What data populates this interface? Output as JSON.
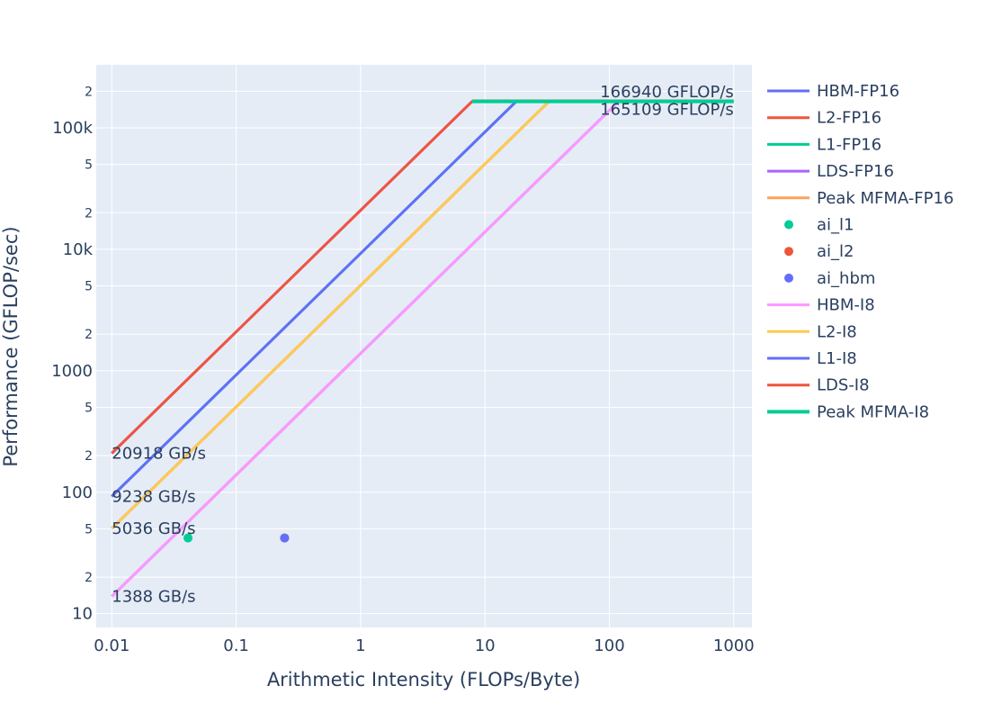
{
  "chart_data": {
    "type": "line",
    "xlabel": "Arithmetic Intensity (FLOPs/Byte)",
    "ylabel": "Performance (GFLOP/sec)",
    "x_scale": "log",
    "y_scale": "log",
    "xlim": [
      0.0075,
      1400
    ],
    "ylim": [
      7.7,
      330000
    ],
    "grid": true,
    "legend_position": "right",
    "x_ticks": [
      {
        "value": 0.01,
        "label": "0.01"
      },
      {
        "value": 0.1,
        "label": "0.1"
      },
      {
        "value": 1,
        "label": "1"
      },
      {
        "value": 10,
        "label": "10"
      },
      {
        "value": 100,
        "label": "100"
      },
      {
        "value": 1000,
        "label": "1000"
      }
    ],
    "y_major_ticks": [
      {
        "value": 10,
        "label": "10"
      },
      {
        "value": 100,
        "label": "100"
      },
      {
        "value": 1000,
        "label": "1000"
      },
      {
        "value": 10000,
        "label": "10k"
      },
      {
        "value": 100000,
        "label": "100k"
      }
    ],
    "y_minor_ticks": [
      {
        "value": 20,
        "label": "2"
      },
      {
        "value": 50,
        "label": "5"
      },
      {
        "value": 200,
        "label": "2"
      },
      {
        "value": 500,
        "label": "5"
      },
      {
        "value": 2000,
        "label": "2"
      },
      {
        "value": 5000,
        "label": "5"
      },
      {
        "value": 20000,
        "label": "2"
      },
      {
        "value": 50000,
        "label": "5"
      },
      {
        "value": 200000,
        "label": "2"
      }
    ],
    "series": [
      {
        "name": "HBM-FP16",
        "kind": "line",
        "color": "#636efa",
        "width": 3,
        "x": [
          0.01,
          120.27
        ],
        "y": [
          13.88,
          166940
        ]
      },
      {
        "name": "L2-FP16",
        "kind": "line",
        "color": "#ef553b",
        "width": 3,
        "x": [
          0.01,
          33.15
        ],
        "y": [
          50.36,
          166940
        ]
      },
      {
        "name": "L1-FP16",
        "kind": "line",
        "color": "#00cc96",
        "width": 3,
        "x": [
          0.01,
          18.07
        ],
        "y": [
          92.38,
          166940
        ]
      },
      {
        "name": "LDS-FP16",
        "kind": "line",
        "color": "#ab63fa",
        "width": 3,
        "x": [
          0.01,
          7.98
        ],
        "y": [
          209.18,
          166940
        ]
      },
      {
        "name": "Peak MFMA-FP16",
        "kind": "line",
        "color": "#ffa15a",
        "width": 3,
        "x": [
          7.98,
          1000
        ],
        "y": [
          166940,
          166940
        ]
      },
      {
        "name": "ai_l1",
        "kind": "marker",
        "color": "#00cc96",
        "x": [
          0.041
        ],
        "y": [
          42
        ]
      },
      {
        "name": "ai_l2",
        "kind": "marker",
        "color": "#ef553b",
        "x": [
          0.245
        ],
        "y": [
          42
        ]
      },
      {
        "name": "ai_hbm",
        "kind": "marker",
        "color": "#636efa",
        "x": [
          0.245
        ],
        "y": [
          42
        ]
      },
      {
        "name": "HBM-I8",
        "kind": "line",
        "color": "#ff97ff",
        "width": 3,
        "x": [
          0.01,
          119.0
        ],
        "y": [
          13.88,
          165109
        ]
      },
      {
        "name": "L2-I8",
        "kind": "line",
        "color": "#fecb52",
        "width": 3,
        "x": [
          0.01,
          32.78
        ],
        "y": [
          50.36,
          165109
        ]
      },
      {
        "name": "L1-I8",
        "kind": "line",
        "color": "#636efa",
        "width": 3,
        "x": [
          0.01,
          17.87
        ],
        "y": [
          92.38,
          165109
        ]
      },
      {
        "name": "LDS-I8",
        "kind": "line",
        "color": "#ef553b",
        "width": 3,
        "x": [
          0.01,
          7.89
        ],
        "y": [
          209.18,
          165109
        ]
      },
      {
        "name": "Peak MFMA-I8",
        "kind": "line",
        "color": "#00cc96",
        "width": 4,
        "x": [
          7.89,
          1000
        ],
        "y": [
          165109,
          165109
        ]
      }
    ],
    "annotations": [
      {
        "text": "20918 GB/s",
        "x": 0.01,
        "y": 209.18
      },
      {
        "text": "9238 GB/s",
        "x": 0.01,
        "y": 92.38
      },
      {
        "text": "5036 GB/s",
        "x": 0.01,
        "y": 50.36
      },
      {
        "text": "1388 GB/s",
        "x": 0.01,
        "y": 13.88
      },
      {
        "text": "166940 GFLOP/s",
        "x": 1000,
        "y": 166940,
        "anchor": "end",
        "pos": "above"
      },
      {
        "text": "165109 GFLOP/s",
        "x": 1000,
        "y": 165109,
        "anchor": "end",
        "pos": "below"
      }
    ]
  },
  "colors": {
    "plot_background": "#e5ecf6",
    "grid": "#ffffff",
    "text": "#2a3f5f"
  }
}
